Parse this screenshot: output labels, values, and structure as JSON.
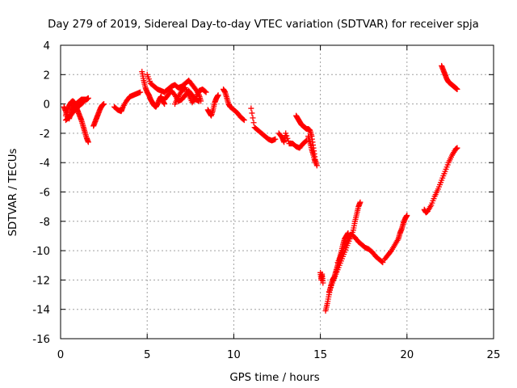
{
  "chart_data": {
    "type": "scatter",
    "title": "Day 279 of 2019, Sidereal Day-to-day VTEC variation (SDTVAR) for receiver spja",
    "xlabel": "GPS time / hours",
    "ylabel": "SDTVAR / TECUs",
    "xlim": [
      0,
      25
    ],
    "ylim": [
      -16,
      4
    ],
    "xticks": [
      0,
      5,
      10,
      15,
      20,
      25
    ],
    "yticks": [
      -16,
      -14,
      -12,
      -10,
      -8,
      -6,
      -4,
      -2,
      0,
      2,
      4
    ],
    "grid": true,
    "marker": "plus",
    "color": "#ff0000",
    "series": [
      {
        "segments": [
          [
            [
              0.2,
              -0.2
            ],
            [
              0.3,
              -0.5
            ],
            [
              0.4,
              -0.9
            ],
            [
              0.5,
              -1.0
            ],
            [
              0.6,
              -0.6
            ],
            [
              0.7,
              -0.3
            ],
            [
              0.8,
              -0.1
            ],
            [
              0.9,
              0.0
            ],
            [
              1.0,
              0.1
            ],
            [
              1.1,
              0.2
            ],
            [
              1.2,
              0.3
            ],
            [
              1.3,
              0.3
            ],
            [
              1.4,
              0.3
            ],
            [
              1.5,
              0.3
            ],
            [
              1.6,
              0.4
            ]
          ],
          [
            [
              0.3,
              -0.8
            ],
            [
              0.4,
              -0.4
            ],
            [
              0.5,
              -0.1
            ],
            [
              0.6,
              0.1
            ],
            [
              0.7,
              0.2
            ],
            [
              0.8,
              0.1
            ],
            [
              0.9,
              -0.2
            ],
            [
              1.0,
              -0.5
            ],
            [
              1.1,
              -0.8
            ],
            [
              1.2,
              -1.1
            ],
            [
              1.3,
              -1.5
            ],
            [
              1.4,
              -1.9
            ],
            [
              1.5,
              -2.3
            ],
            [
              1.6,
              -2.6
            ]
          ],
          [
            [
              0.3,
              -1.1
            ],
            [
              0.5,
              -0.9
            ],
            [
              0.7,
              -0.6
            ],
            [
              0.9,
              -0.3
            ],
            [
              1.1,
              -0.1
            ],
            [
              1.3,
              0.1
            ]
          ],
          [
            [
              1.9,
              -1.5
            ],
            [
              2.0,
              -1.2
            ],
            [
              2.1,
              -0.9
            ],
            [
              2.2,
              -0.6
            ],
            [
              2.3,
              -0.3
            ],
            [
              2.4,
              -0.1
            ],
            [
              2.5,
              0.0
            ]
          ],
          [
            [
              3.1,
              -0.2
            ],
            [
              3.3,
              -0.4
            ],
            [
              3.5,
              -0.5
            ],
            [
              3.6,
              -0.2
            ],
            [
              3.8,
              0.2
            ],
            [
              4.0,
              0.5
            ],
            [
              4.2,
              0.6
            ],
            [
              4.4,
              0.7
            ],
            [
              4.6,
              0.8
            ]
          ],
          [
            [
              4.7,
              2.2
            ],
            [
              4.8,
              1.6
            ],
            [
              4.9,
              1.1
            ],
            [
              5.0,
              0.8
            ],
            [
              5.1,
              0.6
            ],
            [
              5.2,
              0.3
            ],
            [
              5.3,
              0.1
            ],
            [
              5.4,
              -0.1
            ],
            [
              5.5,
              -0.2
            ],
            [
              5.6,
              0.0
            ],
            [
              5.7,
              0.3
            ],
            [
              5.8,
              0.5
            ],
            [
              5.9,
              0.2
            ],
            [
              6.0,
              0.0
            ]
          ],
          [
            [
              5.0,
              2.0
            ],
            [
              5.2,
              1.4
            ],
            [
              5.4,
              1.2
            ],
            [
              5.6,
              1.0
            ],
            [
              5.8,
              0.9
            ],
            [
              6.0,
              0.8
            ],
            [
              6.2,
              1.0
            ],
            [
              6.4,
              1.2
            ],
            [
              6.6,
              1.3
            ],
            [
              6.8,
              1.1
            ],
            [
              7.0,
              1.2
            ],
            [
              7.2,
              1.4
            ],
            [
              7.4,
              1.6
            ],
            [
              7.6,
              1.3
            ],
            [
              7.8,
              1.0
            ],
            [
              8.0,
              0.6
            ],
            [
              8.1,
              0.2
            ]
          ],
          [
            [
              6.0,
              0.3
            ],
            [
              6.2,
              0.6
            ],
            [
              6.4,
              0.9
            ],
            [
              6.6,
              0.6
            ],
            [
              6.8,
              0.2
            ],
            [
              7.0,
              0.3
            ],
            [
              7.2,
              0.6
            ],
            [
              7.4,
              0.9
            ],
            [
              7.6,
              0.6
            ],
            [
              7.8,
              0.3
            ],
            [
              8.0,
              0.2
            ]
          ],
          [
            [
              6.6,
              0.0
            ],
            [
              6.8,
              0.5
            ],
            [
              7.0,
              0.9
            ],
            [
              7.2,
              1.1
            ],
            [
              7.4,
              0.6
            ],
            [
              7.6,
              0.1
            ],
            [
              7.8,
              0.4
            ],
            [
              8.0,
              0.9
            ],
            [
              8.2,
              1.0
            ],
            [
              8.4,
              0.8
            ]
          ],
          [
            [
              8.5,
              -0.4
            ],
            [
              8.6,
              -0.6
            ],
            [
              8.7,
              -0.8
            ],
            [
              8.8,
              -0.4
            ],
            [
              8.9,
              0.1
            ],
            [
              9.0,
              0.4
            ],
            [
              9.1,
              0.6
            ]
          ],
          [
            [
              9.4,
              1.0
            ],
            [
              9.5,
              0.8
            ],
            [
              9.6,
              0.4
            ],
            [
              9.7,
              0.0
            ],
            [
              9.8,
              -0.2
            ],
            [
              10.0,
              -0.4
            ],
            [
              10.2,
              -0.6
            ],
            [
              10.4,
              -0.9
            ],
            [
              10.6,
              -1.1
            ]
          ],
          [
            [
              11.0,
              -0.3
            ],
            [
              11.2,
              -1.6
            ],
            [
              11.4,
              -1.8
            ],
            [
              11.6,
              -2.0
            ],
            [
              11.8,
              -2.2
            ],
            [
              12.0,
              -2.4
            ],
            [
              12.2,
              -2.5
            ],
            [
              12.4,
              -2.4
            ]
          ],
          [
            [
              12.6,
              -2.0
            ],
            [
              12.8,
              -2.3
            ],
            [
              12.9,
              -2.6
            ],
            [
              13.0,
              -2.0
            ],
            [
              13.2,
              -2.7
            ],
            [
              13.4,
              -2.7
            ],
            [
              13.6,
              -2.9
            ],
            [
              13.8,
              -3.0
            ],
            [
              14.0,
              -2.7
            ],
            [
              14.2,
              -2.5
            ]
          ],
          [
            [
              13.6,
              -0.8
            ],
            [
              13.7,
              -1.0
            ],
            [
              13.8,
              -1.2
            ],
            [
              13.9,
              -1.4
            ],
            [
              14.0,
              -1.5
            ],
            [
              14.1,
              -1.6
            ],
            [
              14.2,
              -1.7
            ],
            [
              14.3,
              -1.7
            ],
            [
              14.4,
              -1.8
            ],
            [
              14.5,
              -2.2
            ],
            [
              14.6,
              -3.0
            ],
            [
              14.7,
              -3.8
            ],
            [
              14.8,
              -4.2
            ]
          ],
          [
            [
              14.3,
              -2.2
            ],
            [
              14.4,
              -2.6
            ],
            [
              14.5,
              -3.1
            ],
            [
              14.6,
              -3.5
            ],
            [
              14.7,
              -4.0
            ]
          ],
          [
            [
              15.0,
              -11.5
            ],
            [
              15.05,
              -12.0
            ],
            [
              15.1,
              -11.6
            ],
            [
              15.15,
              -12.2
            ]
          ],
          [
            [
              15.3,
              -14.1
            ],
            [
              15.4,
              -13.6
            ],
            [
              15.5,
              -13.0
            ],
            [
              15.6,
              -12.4
            ],
            [
              15.7,
              -12.0
            ],
            [
              15.8,
              -11.8
            ],
            [
              15.9,
              -11.4
            ],
            [
              16.0,
              -11.0
            ],
            [
              16.1,
              -10.6
            ],
            [
              16.2,
              -10.1
            ],
            [
              16.3,
              -9.6
            ],
            [
              16.4,
              -9.2
            ],
            [
              16.5,
              -9.0
            ],
            [
              16.6,
              -8.8
            ]
          ],
          [
            [
              15.5,
              -12.8
            ],
            [
              15.7,
              -12.2
            ],
            [
              15.9,
              -11.6
            ],
            [
              16.1,
              -11.0
            ],
            [
              16.3,
              -10.4
            ],
            [
              16.5,
              -9.8
            ],
            [
              16.7,
              -9.2
            ],
            [
              16.9,
              -8.6
            ],
            [
              17.0,
              -8.0
            ],
            [
              17.1,
              -7.5
            ],
            [
              17.2,
              -7.0
            ],
            [
              17.3,
              -6.7
            ]
          ],
          [
            [
              16.0,
              -10.8
            ],
            [
              16.2,
              -10.3
            ],
            [
              16.4,
              -9.7
            ],
            [
              16.6,
              -9.2
            ],
            [
              16.8,
              -8.9
            ],
            [
              17.0,
              -9.1
            ],
            [
              17.2,
              -9.4
            ],
            [
              17.4,
              -9.6
            ],
            [
              17.6,
              -9.8
            ],
            [
              17.8,
              -9.9
            ],
            [
              18.0,
              -10.1
            ],
            [
              18.2,
              -10.4
            ],
            [
              18.4,
              -10.6
            ],
            [
              18.6,
              -10.8
            ]
          ],
          [
            [
              18.7,
              -10.6
            ],
            [
              18.9,
              -10.3
            ],
            [
              19.1,
              -10.0
            ],
            [
              19.3,
              -9.6
            ],
            [
              19.5,
              -9.2
            ],
            [
              19.6,
              -8.8
            ],
            [
              19.7,
              -8.5
            ],
            [
              19.8,
              -8.1
            ],
            [
              19.9,
              -7.8
            ],
            [
              20.0,
              -7.6
            ]
          ],
          [
            [
              21.0,
              -7.2
            ],
            [
              21.1,
              -7.4
            ],
            [
              21.2,
              -7.3
            ],
            [
              21.4,
              -6.9
            ],
            [
              21.6,
              -6.3
            ],
            [
              21.8,
              -5.8
            ],
            [
              22.0,
              -5.2
            ],
            [
              22.2,
              -4.6
            ],
            [
              22.4,
              -4.0
            ],
            [
              22.6,
              -3.5
            ],
            [
              22.8,
              -3.1
            ],
            [
              22.9,
              -3.0
            ]
          ],
          [
            [
              22.0,
              2.6
            ],
            [
              22.1,
              2.3
            ],
            [
              22.2,
              2.0
            ],
            [
              22.3,
              1.7
            ],
            [
              22.4,
              1.5
            ],
            [
              22.5,
              1.4
            ],
            [
              22.6,
              1.3
            ],
            [
              22.7,
              1.2
            ],
            [
              22.8,
              1.1
            ],
            [
              22.9,
              1.0
            ]
          ]
        ]
      }
    ]
  }
}
